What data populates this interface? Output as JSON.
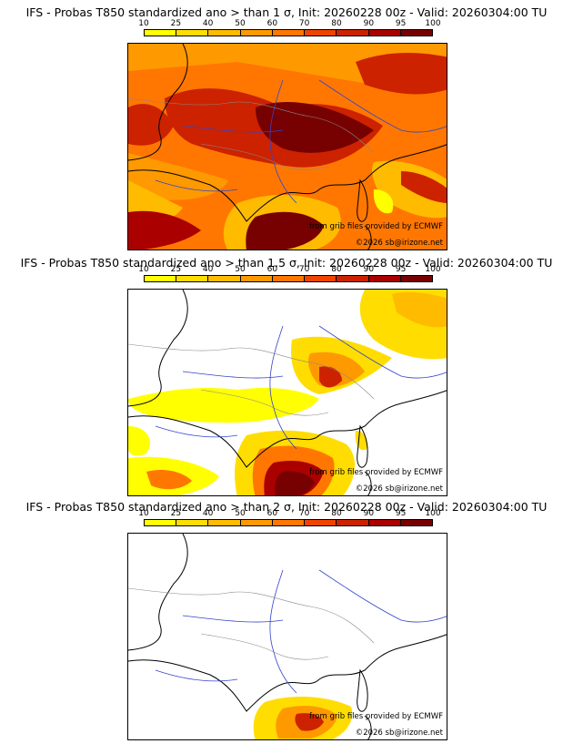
{
  "panels": [
    {
      "title": "IFS - Probas T850  standardized ano > than 1 σ, Init: 20260228 00z - Valid: 20260304:00 TU"
    },
    {
      "title": "IFS - Probas T850  standardized ano > than 1.5 σ, Init: 20260228 00z - Valid: 20260304:00 TU"
    },
    {
      "title": "IFS - Probas T850  standardized ano > than 2 σ, Init: 20260228 00z - Valid: 20260304:00 TU"
    }
  ],
  "legend": {
    "ticks": [
      "10",
      "25",
      "40",
      "50",
      "60",
      "70",
      "80",
      "90",
      "95",
      "100"
    ],
    "colors": [
      "#ffff00",
      "#ffdd00",
      "#ffbb00",
      "#ff9900",
      "#ff7700",
      "#ee4400",
      "#cc2200",
      "#aa0000",
      "#770000"
    ]
  },
  "credits": {
    "source": "from grib files provided by ECMWF",
    "copyright": "©2026 sb@irizone.net"
  },
  "colors": {
    "coast": "#000000",
    "rivers": "#3344cc",
    "borders": "#888888"
  }
}
